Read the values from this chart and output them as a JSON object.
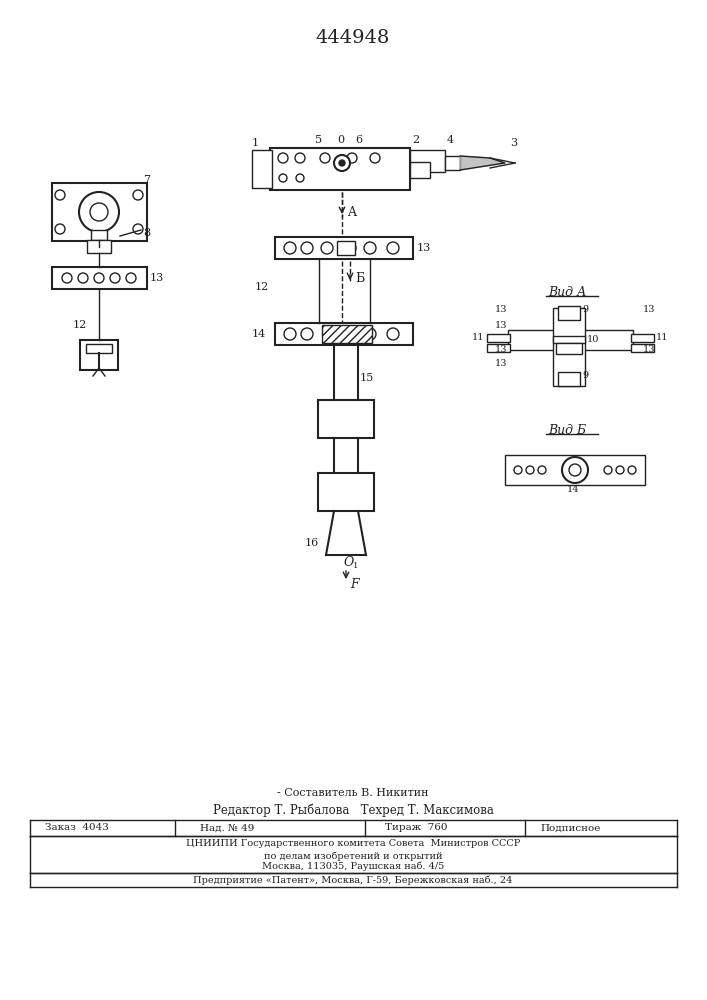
{
  "patent_number": "444948",
  "bg_color": "#ffffff",
  "line_color": "#222222",
  "composer": "Составитель В. Никитин",
  "editor": "Редактор Т. Рыбалова   Техред Т. Максимова",
  "cnipi_line1": "ЦНИИПИ Государственного комитета Совета  Министров СССР",
  "cnipi_line2": "по делам изобретений и открытий",
  "cnipi_line3": "Москва, 113035, Раушская наб. 4/5",
  "patent_line": "Предприятие «Патент», Москва, Г-59, Бережковская наб., 24"
}
